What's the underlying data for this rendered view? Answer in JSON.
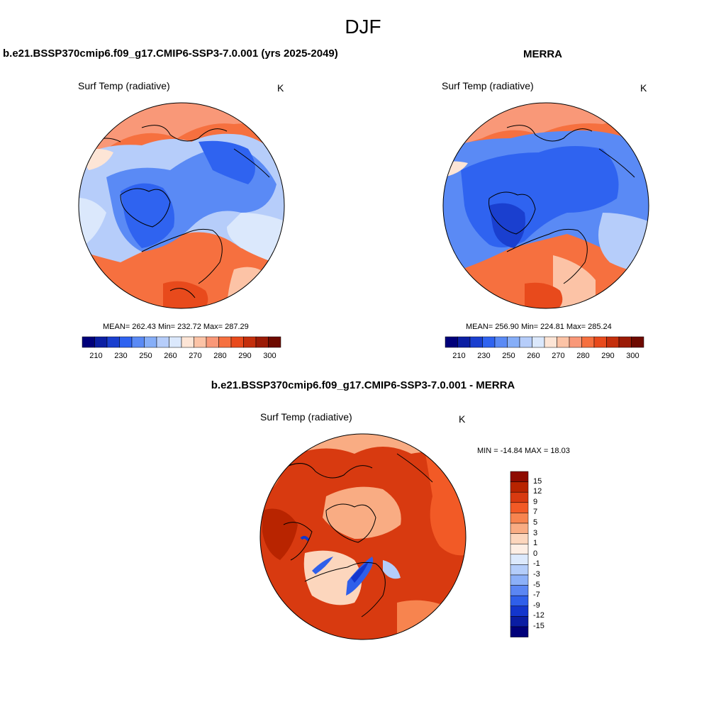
{
  "figure": {
    "title": "DJF"
  },
  "panels": {
    "model": {
      "title": "b.e21.BSSP370cmip6.f09_g17.CMIP6-SSP3-7.0.001 (yrs 2025-2049)",
      "variable": "Surf Temp (radiative)",
      "units": "K",
      "stats": "MEAN= 262.43  Min= 232.72  Max= 287.29",
      "mean": 262.43,
      "min": 232.72,
      "max": 287.29
    },
    "obs": {
      "title": "MERRA",
      "variable": "Surf Temp (radiative)",
      "units": "K",
      "stats": "MEAN= 256.90  Min= 224.81  Max= 285.24",
      "mean": 256.9,
      "min": 224.81,
      "max": 285.24
    },
    "diff": {
      "title": "b.e21.BSSP370cmip6.f09_g17.CMIP6-SSP3-7.0.001 - MERRA",
      "variable": "Surf Temp (radiative)",
      "units": "K",
      "stats": "MIN = -14.84 MAX =  18.03",
      "min": -14.84,
      "max": 18.03
    }
  },
  "colorbars": {
    "absolute": {
      "colors": [
        "#00007a",
        "#0b1fa3",
        "#1a3fcf",
        "#2f63f0",
        "#5a8af5",
        "#86aef8",
        "#b6cdfa",
        "#dbe8fc",
        "#fde5d6",
        "#fcc3a6",
        "#f99878",
        "#f6703f",
        "#e84a1c",
        "#c42f0c",
        "#9b1b06",
        "#6e0a00"
      ],
      "labels": [
        "210",
        "230",
        "250",
        "260",
        "270",
        "280",
        "290",
        "300"
      ]
    },
    "difference": {
      "colors": [
        "#8e0b00",
        "#b82400",
        "#d83a10",
        "#f25a26",
        "#f7844f",
        "#f9ac83",
        "#fcd6bd",
        "#fdeee4",
        "#dce9fc",
        "#b4cdfa",
        "#8cb0f8",
        "#5b86f3",
        "#2f5fea",
        "#1336cd",
        "#0a1da3",
        "#00007a"
      ],
      "labels": [
        "15",
        "12",
        "9",
        "7",
        "5",
        "3",
        "1",
        "0",
        "-1",
        "-3",
        "-5",
        "-7",
        "-9",
        "-12",
        "-15"
      ]
    }
  }
}
